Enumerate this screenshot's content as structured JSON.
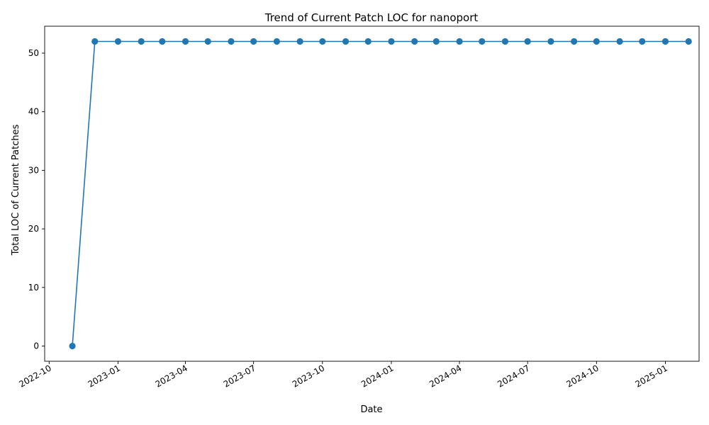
{
  "chart_data": {
    "type": "line",
    "title": "Trend of Current Patch LOC for nanoport",
    "xlabel": "Date",
    "ylabel": "Total LOC of Current Patches",
    "x_axis": {
      "type": "date",
      "range": [
        "2022-09-25",
        "2025-02-15"
      ],
      "ticks": [
        "2022-10-01",
        "2023-01-01",
        "2023-04-01",
        "2023-07-01",
        "2023-10-01",
        "2024-01-01",
        "2024-04-01",
        "2024-07-01",
        "2024-10-01",
        "2025-01-01"
      ],
      "tick_labels": [
        "2022-10",
        "2023-01",
        "2023-04",
        "2023-07",
        "2023-10",
        "2024-01",
        "2024-04",
        "2024-07",
        "2024-10",
        "2025-01"
      ]
    },
    "y_axis": {
      "range": [
        -2.6,
        54.6
      ],
      "ticks": [
        0,
        10,
        20,
        30,
        40,
        50
      ],
      "tick_labels": [
        "0",
        "10",
        "20",
        "30",
        "40",
        "50"
      ]
    },
    "grid": false,
    "legend": "none",
    "color": "#1f77b4",
    "series": [
      {
        "x": [
          "2022-11-01",
          "2022-12-01",
          "2023-01-01",
          "2023-02-01",
          "2023-03-01",
          "2023-04-01",
          "2023-05-01",
          "2023-06-01",
          "2023-07-01",
          "2023-08-01",
          "2023-09-01",
          "2023-10-01",
          "2023-11-01",
          "2023-12-01",
          "2024-01-01",
          "2024-02-01",
          "2024-03-01",
          "2024-04-01",
          "2024-05-01",
          "2024-06-01",
          "2024-07-01",
          "2024-08-01",
          "2024-09-01",
          "2024-10-01",
          "2024-11-01",
          "2024-12-01",
          "2025-01-01",
          "2025-02-01"
        ],
        "values": [
          0,
          52,
          52,
          52,
          52,
          52,
          52,
          52,
          52,
          52,
          52,
          52,
          52,
          52,
          52,
          52,
          52,
          52,
          52,
          52,
          52,
          52,
          52,
          52,
          52,
          52,
          52,
          52
        ]
      }
    ]
  }
}
